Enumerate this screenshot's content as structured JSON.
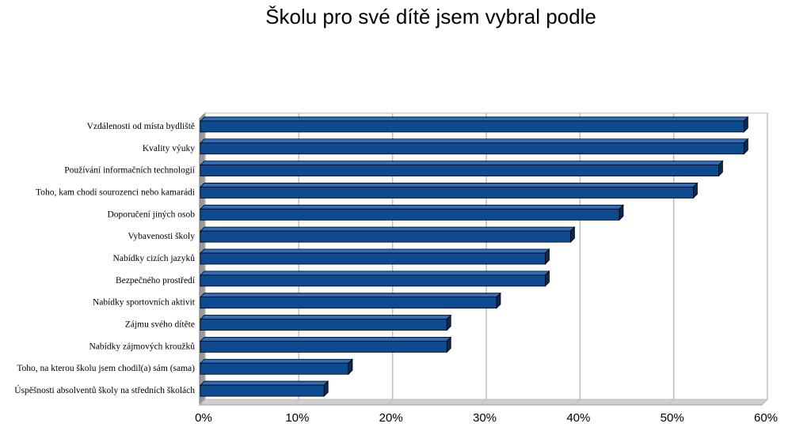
{
  "chart_data": {
    "type": "bar",
    "orientation": "horizontal",
    "title": "Školu pro své dítě jsem vybral podle",
    "categories": [
      "Vzdálenosti od místa bydliště",
      "Kvality výuky",
      "Používání informačních technologií",
      "Toho, kam chodí sourozenci nebo kamarádi",
      "Doporučení jiných osob",
      "Vybavenosti školy",
      "Nabídky cizích jazyků",
      "Bezpečného prostředí",
      "Nabídky sportovních aktivit",
      "Zájmu svého dítěte",
      "Nabídky zájmových kroužků",
      "Toho, na kterou školu jsem chodil(a) sám (sama)",
      "Úspěšnosti absolventů školy na středních školách"
    ],
    "values": [
      58,
      58,
      55.3,
      52.6,
      44.7,
      39.5,
      36.8,
      36.8,
      31.6,
      26.3,
      26.3,
      15.8,
      13.2
    ],
    "xlim": [
      0,
      60
    ],
    "xticks": [
      "0%",
      "10%",
      "20%",
      "30%",
      "40%",
      "50%",
      "60%"
    ],
    "grid": true,
    "legend": "none",
    "colors": {
      "bar_front": "#0d4a8f",
      "bar_top": "#2d6dbb",
      "bar_side": "#072a57",
      "bar_outline": "#000000",
      "grid": "#bdbdbd",
      "wall": "#9a9a9a"
    }
  }
}
